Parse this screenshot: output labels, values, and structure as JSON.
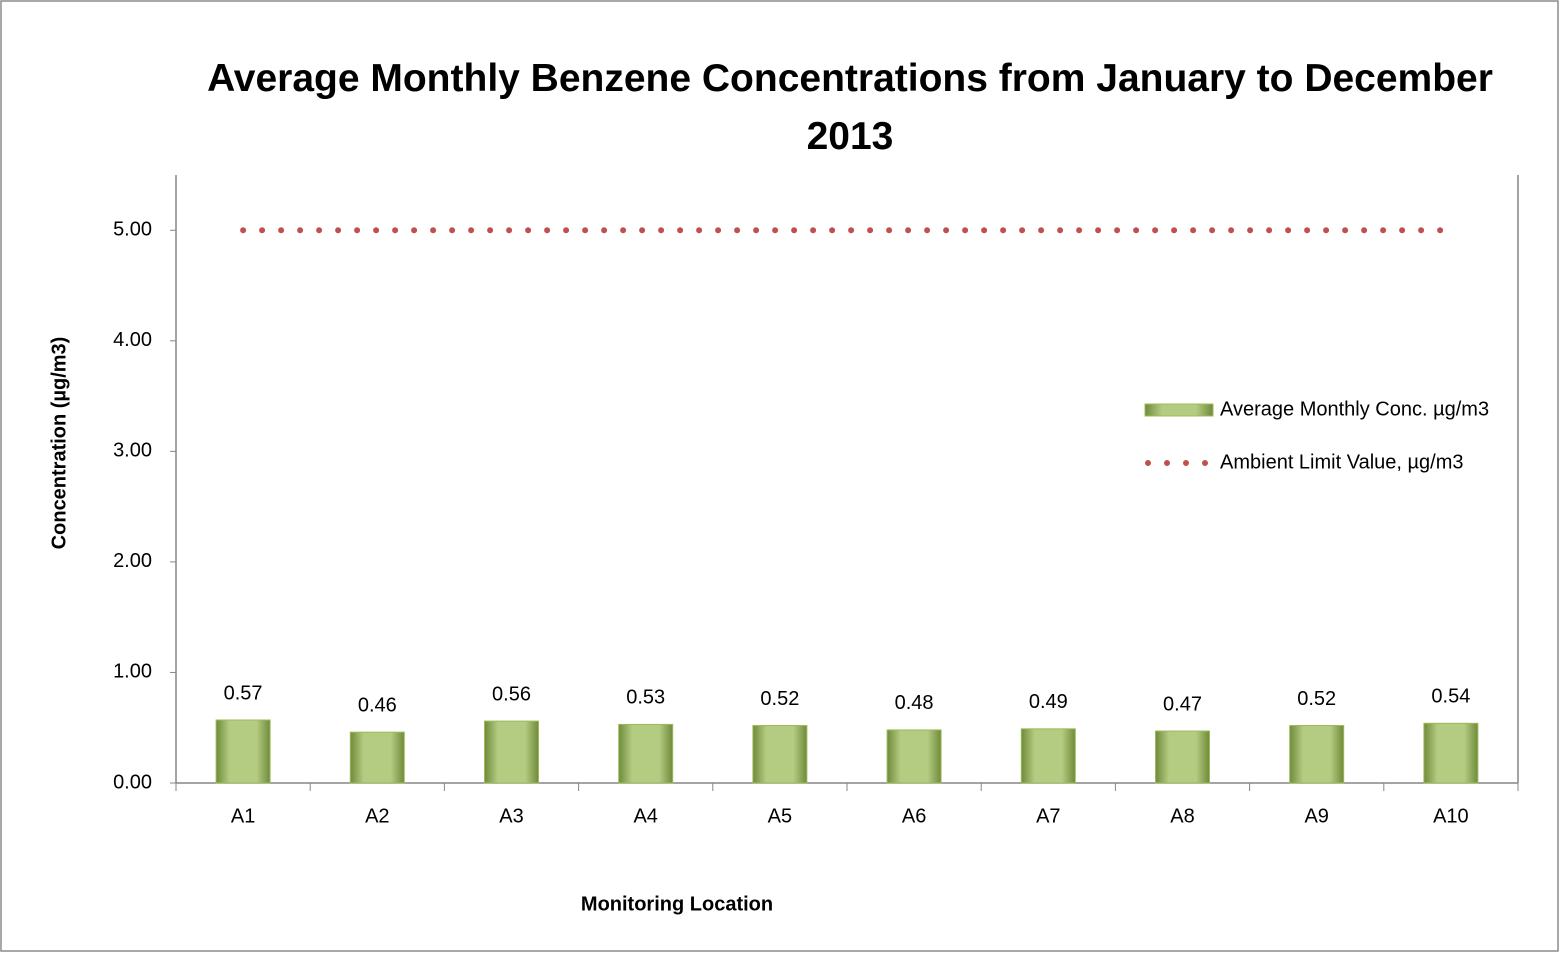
{
  "chart_data": {
    "type": "bar",
    "title": "Average Monthly Benzene Concentrations from January to December 2013",
    "x_label": "Monitoring Location",
    "y_label": "Concentration (µg/m3)",
    "categories": [
      "A1",
      "A2",
      "A3",
      "A4",
      "A5",
      "A6",
      "A7",
      "A8",
      "A9",
      "A10"
    ],
    "series": [
      {
        "name": "Average Monthly Conc. µg/m3",
        "type": "bar",
        "color": "#9bbb59",
        "values": [
          0.57,
          0.46,
          0.56,
          0.53,
          0.52,
          0.48,
          0.49,
          0.47,
          0.52,
          0.54
        ]
      },
      {
        "name": "Ambient Limit Value, µg/m3",
        "type": "line",
        "color": "#c0504d",
        "values": [
          5,
          5,
          5,
          5,
          5,
          5,
          5,
          5,
          5,
          5
        ]
      }
    ],
    "ylim": [
      0,
      5.5
    ],
    "yticks": [
      {
        "value": 0,
        "label": "0.00"
      },
      {
        "value": 1,
        "label": "1.00"
      },
      {
        "value": 2,
        "label": "2.00"
      },
      {
        "value": 3,
        "label": "3.00"
      },
      {
        "value": 4,
        "label": "4.00"
      },
      {
        "value": 5,
        "label": "5.00"
      }
    ],
    "grid": false,
    "legend": "right"
  }
}
